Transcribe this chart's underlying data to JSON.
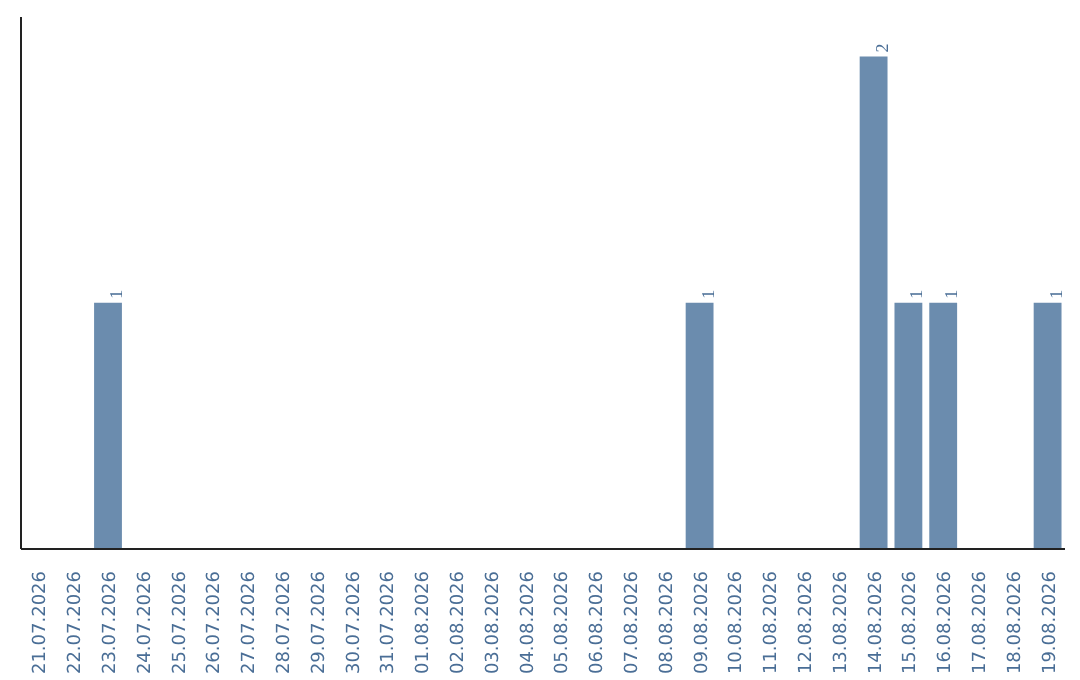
{
  "chart_data": {
    "type": "bar",
    "categories": [
      "21.07.2026",
      "22.07.2026",
      "23.07.2026",
      "24.07.2026",
      "25.07.2026",
      "26.07.2026",
      "27.07.2026",
      "28.07.2026",
      "29.07.2026",
      "30.07.2026",
      "31.07.2026",
      "01.08.2026",
      "02.08.2026",
      "03.08.2026",
      "04.08.2026",
      "05.08.2026",
      "06.08.2026",
      "07.08.2026",
      "08.08.2026",
      "09.08.2026",
      "10.08.2026",
      "11.08.2026",
      "12.08.2026",
      "13.08.2026",
      "14.08.2026",
      "15.08.2026",
      "16.08.2026",
      "17.08.2026",
      "18.08.2026",
      "19.08.2026"
    ],
    "values": [
      0,
      0,
      1,
      0,
      0,
      0,
      0,
      0,
      0,
      0,
      0,
      0,
      0,
      0,
      0,
      0,
      0,
      0,
      0,
      1,
      0,
      0,
      0,
      0,
      2,
      1,
      1,
      0,
      0,
      1
    ],
    "value_labels": [
      null,
      null,
      "1",
      null,
      null,
      null,
      null,
      null,
      null,
      null,
      null,
      null,
      null,
      null,
      null,
      null,
      null,
      null,
      null,
      "1",
      null,
      null,
      null,
      null,
      "2",
      "1",
      "1",
      null,
      null,
      "1"
    ],
    "color": "#6b8cae",
    "grid": false
  }
}
